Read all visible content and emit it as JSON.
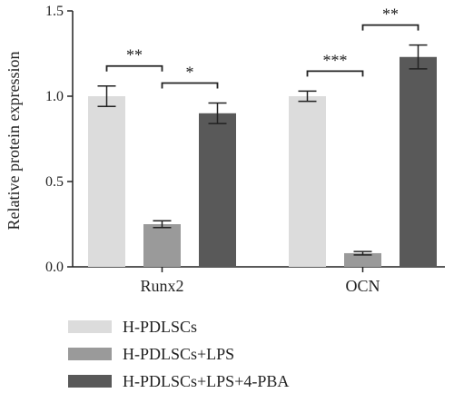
{
  "chart_data": {
    "type": "bar",
    "categories": [
      "Runx2",
      "OCN"
    ],
    "series": [
      {
        "name": "H-PDLSCs",
        "values": [
          1.0,
          1.0
        ],
        "errors": [
          0.06,
          0.03
        ],
        "color": "#dcdcdc"
      },
      {
        "name": "H-PDLSCs+LPS",
        "values": [
          0.25,
          0.08
        ],
        "errors": [
          0.02,
          0.01
        ],
        "color": "#9a9a9a"
      },
      {
        "name": "H-PDLSCs+LPS+4-PBA",
        "values": [
          0.9,
          1.23
        ],
        "errors": [
          0.06,
          0.07
        ],
        "color": "#595959"
      }
    ],
    "ylabel": "Relative protein expression",
    "xlabel": "",
    "ylim": [
      0,
      1.5
    ],
    "yticks": [
      "0.0",
      "0.5",
      "1.0",
      "1.5"
    ],
    "significance": [
      {
        "category": 0,
        "from": 0,
        "to": 1,
        "label": "**"
      },
      {
        "category": 0,
        "from": 1,
        "to": 2,
        "label": "*"
      },
      {
        "category": 1,
        "from": 0,
        "to": 1,
        "label": "***"
      },
      {
        "category": 1,
        "from": 1,
        "to": 2,
        "label": "**"
      }
    ],
    "legend_placement": "bottom",
    "grid": false
  }
}
